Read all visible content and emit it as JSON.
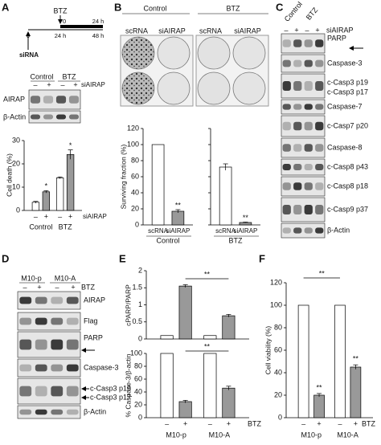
{
  "panel_a": {
    "label": "A",
    "timeline": {
      "drug": "BTZ",
      "si": "siRNA",
      "top_ticks": [
        "0",
        "24 h"
      ],
      "bottom_ticks": [
        "0",
        "24 h",
        "48 h"
      ]
    },
    "blot": {
      "groups": [
        "Control",
        "BTZ"
      ],
      "lanes": [
        "–",
        "+",
        "–",
        "+"
      ],
      "treatment": "siAIRAP",
      "rows": [
        "AIRAP",
        "β-Actin"
      ]
    },
    "chart": {
      "type": "bar",
      "ylabel": "Cell death (%)",
      "ylim": [
        0,
        30
      ],
      "yticks": [
        0,
        10,
        20,
        30
      ],
      "values": [
        3.5,
        8,
        14,
        24
      ],
      "errors": [
        0.4,
        0.5,
        0.4,
        2
      ],
      "colors": [
        "#ffffff",
        "#999999"
      ],
      "lanes": [
        "–",
        "+",
        "–",
        "+"
      ],
      "groups": [
        "Control",
        "BTZ"
      ],
      "treatment": "siAIRAP",
      "annotations": [
        "*",
        "*"
      ]
    }
  },
  "panel_b": {
    "label": "B",
    "groups": [
      "Control",
      "BTZ"
    ],
    "plate_labels": [
      "scRNA",
      "siAIRAP",
      "scRNA",
      "siAIRAP"
    ],
    "chart": {
      "type": "bar",
      "ylabel": "Surviving fraction (%)",
      "ylim": [
        0,
        120
      ],
      "yticks": [
        0,
        20,
        40,
        60,
        80,
        100,
        120
      ],
      "values": [
        100,
        17,
        72,
        3
      ],
      "errors": [
        0,
        2,
        4,
        0.5
      ],
      "colors": [
        "#ffffff",
        "#999999"
      ],
      "categories": [
        "scRNA",
        "siAIRAP",
        "scRNA",
        "siAIRAP"
      ],
      "groups": [
        "Control",
        "BTZ"
      ],
      "annotations": [
        "**",
        "**"
      ]
    }
  },
  "panel_c": {
    "label": "C",
    "groups": [
      "Control",
      "BTZ"
    ],
    "lanes": [
      "–",
      "+",
      "–",
      "+"
    ],
    "treatment": "siAIRAP",
    "rows": [
      "PARP",
      "Caspase-3",
      "c-Casp3 p19",
      "c-Casp3 p17",
      "Caspase-7",
      "c-Casp7 p20",
      "Caspase-8",
      "c-Casp8 p43",
      "c-Casp8 p18",
      "c-Casp9 p37",
      "β-Actin"
    ]
  },
  "panel_d": {
    "label": "D",
    "groups": [
      "M10-p",
      "M10-A"
    ],
    "lanes": [
      "–",
      "+",
      "–",
      "+"
    ],
    "treatment": "BTZ",
    "rows": [
      "AIRAP",
      "Flag",
      "PARP",
      "Caspase-3",
      "c-Casp3 p19",
      "c-Casp3 p17",
      "β-Actin"
    ]
  },
  "panel_e": {
    "label": "E",
    "lanes": [
      "–",
      "+",
      "–",
      "+"
    ],
    "treatment": "BTZ",
    "groups": [
      "M10-p",
      "M10-A"
    ],
    "top": {
      "type": "bar",
      "ylabel": "cPARP/PARP",
      "ylim": [
        0,
        2
      ],
      "yticks": [
        0,
        0.5,
        1,
        1.5,
        2
      ],
      "values": [
        0.1,
        1.55,
        0.1,
        0.68
      ],
      "errors": [
        0,
        0.04,
        0,
        0.04
      ],
      "colors": [
        "#ffffff",
        "#999999"
      ],
      "annotations": [
        "**"
      ]
    },
    "bottom": {
      "type": "bar",
      "ylabel": "% Caspase-3/β-actin",
      "ylim": [
        0,
        100
      ],
      "yticks": [
        0,
        20,
        40,
        60,
        80,
        100
      ],
      "values": [
        100,
        25,
        100,
        46
      ],
      "errors": [
        0,
        2,
        0,
        3
      ],
      "colors": [
        "#ffffff",
        "#999999"
      ],
      "annotations": [
        "**"
      ]
    }
  },
  "panel_f": {
    "label": "F",
    "chart": {
      "type": "bar",
      "ylabel": "Cell viability (%)",
      "ylim": [
        0,
        120
      ],
      "yticks": [
        0,
        20,
        40,
        60,
        80,
        100,
        120
      ],
      "values": [
        100,
        20,
        100,
        45
      ],
      "errors": [
        0,
        1.5,
        0,
        2
      ],
      "colors": [
        "#ffffff",
        "#999999"
      ],
      "annotations": [
        "**",
        "**",
        "**"
      ],
      "lanes": [
        "–",
        "+",
        "–",
        "+"
      ],
      "treatment": "BTZ",
      "groups": [
        "M10-p",
        "M10-A"
      ]
    }
  }
}
